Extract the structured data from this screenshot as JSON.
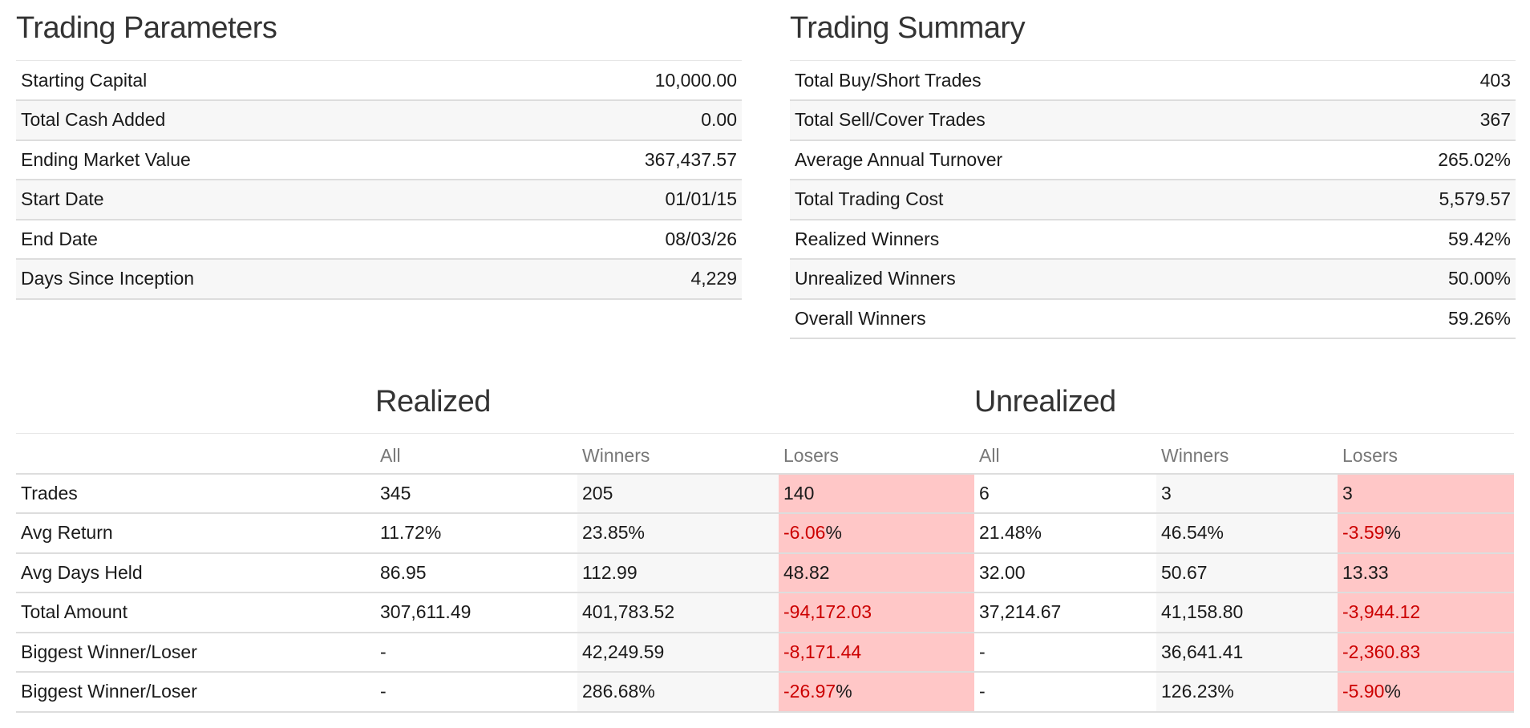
{
  "trading_parameters": {
    "title": "Trading Parameters",
    "rows": [
      {
        "label": "Starting Capital",
        "value": "10,000.00"
      },
      {
        "label": "Total Cash Added",
        "value": "0.00"
      },
      {
        "label": "Ending Market Value",
        "value": "367,437.57"
      },
      {
        "label": "Start Date",
        "value": "01/01/15"
      },
      {
        "label": "End Date",
        "value": "08/03/26"
      },
      {
        "label": "Days Since Inception",
        "value": "4,229"
      }
    ]
  },
  "trading_summary": {
    "title": "Trading Summary",
    "rows": [
      {
        "label": "Total Buy/Short Trades",
        "value": "403"
      },
      {
        "label": "Total Sell/Cover Trades",
        "value": "367"
      },
      {
        "label": "Average Annual Turnover",
        "value": "265.02%"
      },
      {
        "label": "Total Trading Cost",
        "value": "5,579.57"
      },
      {
        "label": "Realized Winners",
        "value": "59.42%"
      },
      {
        "label": "Unrealized Winners",
        "value": "50.00%"
      },
      {
        "label": "Overall Winners",
        "value": "59.26%"
      }
    ]
  },
  "stats": {
    "realized_title": "Realized",
    "unrealized_title": "Unrealized",
    "columns": [
      "All",
      "Winners",
      "Losers",
      "All",
      "Winners",
      "Losers"
    ],
    "rows": [
      {
        "label": "Trades",
        "cells": [
          {
            "n": "345"
          },
          {
            "n": "205"
          },
          {
            "n": "140"
          },
          {
            "n": "6"
          },
          {
            "n": "3"
          },
          {
            "n": "3"
          }
        ]
      },
      {
        "label": "Avg Return",
        "cells": [
          {
            "n": "11.72%"
          },
          {
            "n": "23.85%"
          },
          {
            "n": "-6.06",
            "s": "%"
          },
          {
            "n": "21.48%"
          },
          {
            "n": "46.54%"
          },
          {
            "n": "-3.59",
            "s": "%"
          }
        ]
      },
      {
        "label": "Avg Days Held",
        "cells": [
          {
            "n": "86.95"
          },
          {
            "n": "112.99"
          },
          {
            "n": "48.82"
          },
          {
            "n": "32.00"
          },
          {
            "n": "50.67"
          },
          {
            "n": "13.33"
          }
        ]
      },
      {
        "label": "Total Amount",
        "cells": [
          {
            "n": "307,611.49"
          },
          {
            "n": "401,783.52"
          },
          {
            "n": "-94,172.03"
          },
          {
            "n": "37,214.67"
          },
          {
            "n": "41,158.80"
          },
          {
            "n": "-3,944.12"
          }
        ]
      },
      {
        "label": "Biggest Winner/Loser",
        "cells": [
          {
            "n": "-"
          },
          {
            "n": "42,249.59"
          },
          {
            "n": "-8,171.44"
          },
          {
            "n": "-"
          },
          {
            "n": "36,641.41"
          },
          {
            "n": "-2,360.83"
          }
        ]
      },
      {
        "label": "Biggest Winner/Loser",
        "cells": [
          {
            "n": "-"
          },
          {
            "n": "286.68%"
          },
          {
            "n": "-26.97",
            "s": "%"
          },
          {
            "n": "-"
          },
          {
            "n": "126.23%"
          },
          {
            "n": "-5.90",
            "s": "%"
          }
        ]
      }
    ],
    "colors": {
      "negative": "#cc0000",
      "loser_cell": "#ffc7c7",
      "shaded_cell": "#f7f7f7"
    }
  }
}
